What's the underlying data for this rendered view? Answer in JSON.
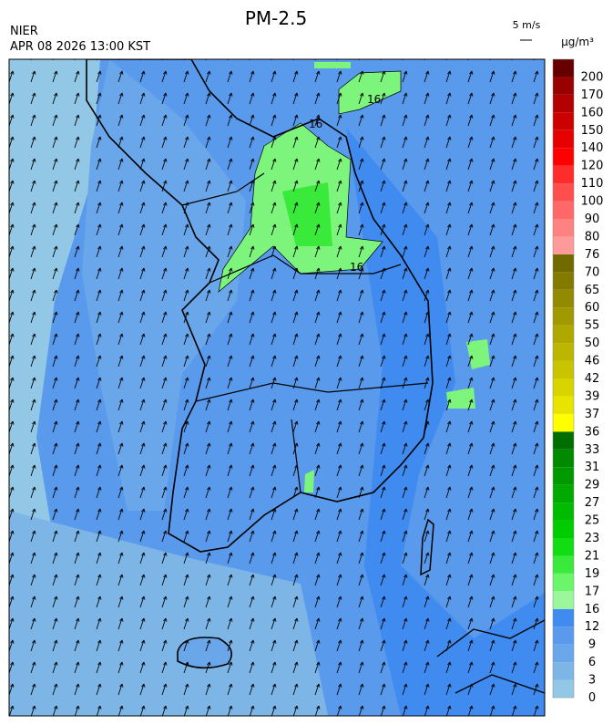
{
  "header": {
    "title": "PM-2.5",
    "agency": "NIER",
    "timestamp": "APR 08 2026 13:00 KST",
    "wind_scale": "5 m/s",
    "unit": "μg/m³"
  },
  "map": {
    "contour_labels": [
      "16",
      "16",
      "16"
    ]
  },
  "colorbar": {
    "ticks": [
      0,
      3,
      6,
      9,
      12,
      16,
      17,
      19,
      21,
      23,
      25,
      27,
      29,
      31,
      33,
      36,
      37,
      39,
      42,
      46,
      50,
      55,
      60,
      65,
      70,
      76,
      80,
      90,
      100,
      110,
      120,
      140,
      150,
      160,
      170,
      200
    ],
    "colors": [
      "#93c7e6",
      "#7db6e6",
      "#6aa7ea",
      "#5a9aec",
      "#3f8bf0",
      "#9cf79c",
      "#6bf56b",
      "#3aea3a",
      "#12dc12",
      "#00cc00",
      "#00bb00",
      "#00aa00",
      "#009a00",
      "#008a00",
      "#006e00",
      "#ffff00",
      "#e8e400",
      "#d8d400",
      "#c9c400",
      "#bcb600",
      "#aea800",
      "#a09900",
      "#928a00",
      "#837b00",
      "#716a00",
      "#ff9a9a",
      "#ff8282",
      "#ff6868",
      "#ff4e4e",
      "#ff2c2c",
      "#ff0000",
      "#e60000",
      "#cc0000",
      "#b30000",
      "#990000",
      "#660000"
    ]
  }
}
